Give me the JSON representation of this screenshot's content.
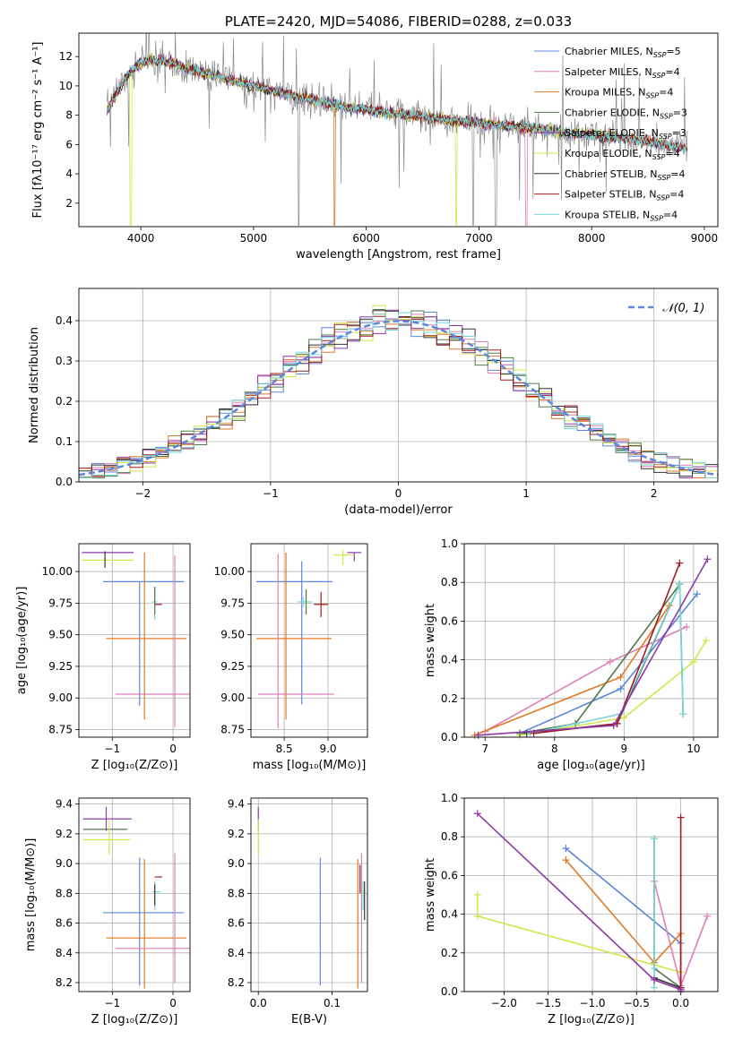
{
  "colors": {
    "chabrier_miles": "#5b86dc",
    "salpeter_miles": "#e07fb9",
    "kroupa_miles": "#e07a25",
    "chabrier_elodie": "#4f7b49",
    "salpeter_elodie": "#8e3aa8",
    "kroupa_elodie": "#cfe84a",
    "chabrier_stelib": "#333333",
    "salpeter_stelib": "#a31a20",
    "kroupa_stelib": "#78d6d8",
    "data": "#8a8a8a",
    "normal": "#5b86dc",
    "grid": "#b0b0b0"
  },
  "chart_data": [
    {
      "id": "spectrum",
      "type": "line",
      "title": "PLATE=2420, MJD=54086, FIBERID=0288, z=0.033",
      "xlabel": "wavelength [Angstrom, rest frame]",
      "ylabel": "Flux [fλ10⁻¹⁷ erg cm⁻² s⁻¹ A⁻¹]",
      "xlim": [
        3450,
        9120
      ],
      "ylim": [
        0.4,
        13.6
      ],
      "xticks": [
        4000,
        5000,
        6000,
        7000,
        8000,
        9000
      ],
      "yticks": [
        2,
        4,
        6,
        8,
        10,
        12
      ],
      "grid": false,
      "legend_position": "upper-right",
      "continuum": {
        "x": [
          3700,
          3750,
          3800,
          3850,
          3900,
          3950,
          4000,
          4100,
          4200,
          4300,
          4400,
          4500,
          4600,
          4700,
          4800,
          4900,
          5000,
          5200,
          5400,
          5600,
          5800,
          6000,
          6200,
          6400,
          6600,
          6800,
          7000,
          7200,
          7400,
          7600,
          7800,
          8000,
          8200,
          8400,
          8600,
          8800
        ],
        "y": [
          8.3,
          9.0,
          9.8,
          10.4,
          10.9,
          11.3,
          11.6,
          11.8,
          11.7,
          11.5,
          11.2,
          11.0,
          10.8,
          10.6,
          10.4,
          10.2,
          10.0,
          9.6,
          9.2,
          8.9,
          8.6,
          8.4,
          8.2,
          8.0,
          7.8,
          7.6,
          7.5,
          7.3,
          7.2,
          7.0,
          6.8,
          6.7,
          6.5,
          6.3,
          6.1,
          5.8
        ]
      },
      "series": [
        {
          "name": "Chabrier MILES, N",
          "sub": "SSP",
          "suffix": "=5",
          "color_key": "chabrier_miles"
        },
        {
          "name": "Salpeter MILES, N",
          "sub": "SSP",
          "suffix": "=4",
          "color_key": "salpeter_miles"
        },
        {
          "name": "Kroupa MILES, N",
          "sub": "SSP",
          "suffix": "=4",
          "color_key": "kroupa_miles"
        },
        {
          "name": "Chabrier ELODIE, N",
          "sub": "SSP",
          "suffix": "=3",
          "color_key": "chabrier_elodie"
        },
        {
          "name": "Salpeter ELODIE, N",
          "sub": "SSP",
          "suffix": "=3",
          "color_key": "salpeter_elodie"
        },
        {
          "name": "Kroupa ELODIE, N",
          "sub": "SSP",
          "suffix": "=4",
          "color_key": "kroupa_elodie"
        },
        {
          "name": "Chabrier STELIB, N",
          "sub": "SSP",
          "suffix": "=4",
          "color_key": "chabrier_stelib"
        },
        {
          "name": "Salpeter STELIB, N",
          "sub": "SSP",
          "suffix": "=4",
          "color_key": "salpeter_stelib"
        },
        {
          "name": "Kroupa STELIB, N",
          "sub": "SSP",
          "suffix": "=4",
          "color_key": "kroupa_stelib"
        }
      ]
    },
    {
      "id": "residuals",
      "type": "histogram",
      "xlabel": "(data-model)/error",
      "ylabel": "Normed distribution",
      "xlim": [
        -2.5,
        2.5
      ],
      "ylim": [
        0.0,
        0.48
      ],
      "xticks": [
        -2,
        -1,
        0,
        1,
        2
      ],
      "yticks": [
        0.0,
        0.1,
        0.2,
        0.3,
        0.4
      ],
      "grid": true,
      "legend_position": "upper-right",
      "legend_label": "𝒩(0, 1)"
    },
    {
      "id": "age_vs_Z",
      "type": "scatter",
      "xlabel": "Z [log₁₀(Z/Z⊙)]",
      "ylabel": "age  [log₁₀(age/yr)]",
      "xlim": [
        -1.55,
        0.28
      ],
      "ylim": [
        8.69,
        10.22
      ],
      "xticks": [
        -1,
        0
      ],
      "yticks": [
        8.75,
        9.0,
        9.25,
        9.5,
        9.75,
        10.0
      ],
      "grid": true,
      "errorbars": [
        {
          "c": "salpeter_elodie",
          "x": -1.05,
          "y": 10.15,
          "x0": -1.5,
          "x1": -0.65,
          "y0": 10.15,
          "y1": 10.15
        },
        {
          "c": "kroupa_elodie",
          "x": -1.0,
          "y": 10.09,
          "x0": -1.5,
          "x1": -0.65,
          "y0": 10.09,
          "y1": 10.09
        },
        {
          "c": "chabrier_stelib",
          "x": -1.12,
          "y": 10.1,
          "x0": -1.12,
          "x1": -1.12,
          "y0": 10.03,
          "y1": 10.16
        },
        {
          "c": "chabrier_miles",
          "x": -0.55,
          "y": 9.92,
          "x0": -1.15,
          "x1": 0.18,
          "y0": 8.94,
          "y1": 9.92
        },
        {
          "c": "kroupa_miles",
          "x": -0.47,
          "y": 9.47,
          "x0": -1.1,
          "x1": 0.22,
          "y0": 8.83,
          "y1": 10.15
        },
        {
          "c": "salpeter_miles",
          "x": 0.03,
          "y": 9.03,
          "x0": -0.95,
          "x1": 0.27,
          "y0": 8.77,
          "y1": 10.13
        },
        {
          "c": "kroupa_stelib",
          "x": -0.3,
          "y": 9.76,
          "x0": -0.34,
          "x1": -0.26,
          "y0": 9.62,
          "y1": 9.88
        },
        {
          "c": "chabrier_elodie",
          "x": -0.3,
          "y": 9.76,
          "x0": -0.3,
          "x1": -0.3,
          "y0": 9.66,
          "y1": 9.88
        },
        {
          "c": "salpeter_stelib",
          "x": -0.25,
          "y": 9.74,
          "x0": -0.3,
          "x1": -0.18,
          "y0": 9.74,
          "y1": 9.74
        }
      ]
    },
    {
      "id": "age_vs_mass",
      "type": "scatter",
      "xlabel": "mass [log₁₀(M/M⊙)]",
      "ylabel": "",
      "xlim": [
        8.12,
        9.45
      ],
      "ylim": [
        8.69,
        10.22
      ],
      "xticks": [
        8.5,
        9.0
      ],
      "yticks": [
        8.75,
        9.0,
        9.25,
        9.5,
        9.75,
        10.0
      ],
      "grid": true,
      "errorbars": [
        {
          "c": "salpeter_elodie",
          "x": 9.3,
          "y": 10.15,
          "x0": 9.22,
          "x1": 9.38,
          "y0": 10.08,
          "y1": 10.15
        },
        {
          "c": "kroupa_elodie",
          "x": 9.17,
          "y": 10.13,
          "x0": 9.06,
          "x1": 9.3,
          "y0": 10.05,
          "y1": 10.17
        },
        {
          "c": "chabrier_miles",
          "x": 8.7,
          "y": 9.92,
          "x0": 8.18,
          "x1": 9.05,
          "y0": 8.95,
          "y1": 10.08
        },
        {
          "c": "kroupa_miles",
          "x": 8.52,
          "y": 9.47,
          "x0": 8.18,
          "x1": 9.04,
          "y0": 8.83,
          "y1": 10.15
        },
        {
          "c": "salpeter_miles",
          "x": 8.43,
          "y": 9.03,
          "x0": 8.2,
          "x1": 9.07,
          "y0": 8.76,
          "y1": 10.14
        },
        {
          "c": "kroupa_stelib",
          "x": 8.72,
          "y": 9.76,
          "x0": 8.65,
          "x1": 8.82,
          "y0": 9.72,
          "y1": 9.8
        },
        {
          "c": "salpeter_stelib",
          "x": 8.92,
          "y": 9.74,
          "x0": 8.84,
          "x1": 9.0,
          "y0": 9.64,
          "y1": 9.84
        },
        {
          "c": "chabrier_elodie",
          "x": 8.75,
          "y": 9.76,
          "x0": 8.75,
          "x1": 8.75,
          "y0": 9.66,
          "y1": 9.86
        }
      ]
    },
    {
      "id": "weight_vs_age",
      "type": "line",
      "xlabel": "age  [log₁₀(age/yr)]",
      "ylabel": "mass weight",
      "xlim": [
        6.7,
        10.35
      ],
      "ylim": [
        0.0,
        1.0
      ],
      "xticks": [
        7,
        8,
        9,
        10
      ],
      "yticks": [
        0.0,
        0.2,
        0.4,
        0.6,
        0.8,
        1.0
      ],
      "grid": true,
      "series": [
        {
          "c": "kroupa_elodie",
          "x": [
            7.5,
            9.0,
            10.0,
            10.18
          ],
          "y": [
            0.01,
            0.1,
            0.39,
            0.5
          ]
        },
        {
          "c": "salpeter_miles",
          "x": [
            7.0,
            8.8,
            9.9
          ],
          "y": [
            0.03,
            0.39,
            0.57
          ]
        },
        {
          "c": "chabrier_miles",
          "x": [
            7.5,
            8.95,
            10.05
          ],
          "y": [
            0.02,
            0.25,
            0.74
          ]
        },
        {
          "c": "kroupa_miles",
          "x": [
            6.85,
            8.95,
            9.65
          ],
          "y": [
            0.01,
            0.31,
            0.68
          ]
        },
        {
          "c": "chabrier_elodie",
          "x": [
            7.5,
            8.3,
            9.8,
            9.85
          ],
          "y": [
            0.02,
            0.07,
            0.79,
            0.12
          ]
        },
        {
          "c": "chabrier_stelib",
          "x": [
            7.6,
            8.9,
            9.8
          ],
          "y": [
            0.02,
            0.07,
            0.79
          ]
        },
        {
          "c": "kroupa_stelib",
          "x": [
            7.65,
            8.95,
            9.8,
            9.85
          ],
          "y": [
            0.02,
            0.12,
            0.79,
            0.12
          ]
        },
        {
          "c": "salpeter_stelib",
          "x": [
            7.7,
            8.9,
            9.8
          ],
          "y": [
            0.02,
            0.07,
            0.9
          ]
        },
        {
          "c": "salpeter_elodie",
          "x": [
            6.9,
            8.85,
            10.2
          ],
          "y": [
            0.01,
            0.06,
            0.92
          ]
        }
      ]
    },
    {
      "id": "mass_vs_Z",
      "type": "scatter",
      "xlabel": "Z [log₁₀(Z/Z⊙)]",
      "ylabel": "mass [log₁₀(M/M⊙)]",
      "xlim": [
        -1.55,
        0.28
      ],
      "ylim": [
        8.14,
        9.44
      ],
      "xticks": [
        -1,
        0
      ],
      "yticks": [
        8.2,
        8.4,
        8.6,
        8.8,
        9.0,
        9.2,
        9.4
      ],
      "grid": true,
      "errorbars": [
        {
          "c": "salpeter_elodie",
          "x": -1.1,
          "y": 9.3,
          "x0": -1.48,
          "x1": -0.68,
          "y0": 9.22,
          "y1": 9.38
        },
        {
          "c": "chabrier_elodie",
          "x": -1.1,
          "y": 9.23,
          "x0": -1.48,
          "x1": -0.75,
          "y0": 9.23,
          "y1": 9.23
        },
        {
          "c": "kroupa_elodie",
          "x": -1.05,
          "y": 9.16,
          "x0": -1.48,
          "x1": -0.7,
          "y0": 9.06,
          "y1": 9.3
        },
        {
          "c": "chabrier_miles",
          "x": -0.55,
          "y": 8.67,
          "x0": -1.15,
          "x1": 0.18,
          "y0": 8.18,
          "y1": 9.04
        },
        {
          "c": "kroupa_miles",
          "x": -0.47,
          "y": 8.5,
          "x0": -1.1,
          "x1": 0.22,
          "y0": 8.16,
          "y1": 9.03
        },
        {
          "c": "salpeter_miles",
          "x": 0.03,
          "y": 8.43,
          "x0": -0.95,
          "x1": 0.27,
          "y0": 8.2,
          "y1": 9.07
        },
        {
          "c": "kroupa_stelib",
          "x": -0.3,
          "y": 8.81,
          "x0": -0.34,
          "x1": -0.2,
          "y0": 8.69,
          "y1": 8.88
        },
        {
          "c": "salpeter_stelib",
          "x": -0.25,
          "y": 8.91,
          "x0": -0.3,
          "x1": -0.18,
          "y0": 8.91,
          "y1": 8.91
        },
        {
          "c": "chabrier_stelib",
          "x": -0.3,
          "y": 8.8,
          "x0": -0.3,
          "x1": -0.3,
          "y0": 8.72,
          "y1": 8.86
        }
      ]
    },
    {
      "id": "mass_vs_ebv",
      "type": "scatter",
      "xlabel": "E(B-V)",
      "ylabel": "",
      "xlim": [
        -0.01,
        0.148
      ],
      "ylim": [
        8.14,
        9.44
      ],
      "xticks": [
        0.0,
        0.1
      ],
      "yticks": [
        8.2,
        8.4,
        8.6,
        8.8,
        9.0,
        9.2,
        9.4
      ],
      "grid": true,
      "errorbars": [
        {
          "c": "salpeter_elodie",
          "x": 0.0,
          "y": 9.3,
          "x0": 0.0,
          "x1": 0.0,
          "y0": 9.22,
          "y1": 9.38
        },
        {
          "c": "kroupa_elodie",
          "x": 0.0,
          "y": 9.16,
          "x0": 0.0,
          "x1": 0.0,
          "y0": 9.06,
          "y1": 9.3
        },
        {
          "c": "chabrier_miles",
          "x": 0.084,
          "y": 8.67,
          "x0": 0.084,
          "x1": 0.084,
          "y0": 8.18,
          "y1": 9.04
        },
        {
          "c": "kroupa_miles",
          "x": 0.135,
          "y": 8.5,
          "x0": 0.135,
          "x1": 0.135,
          "y0": 8.16,
          "y1": 9.03
        },
        {
          "c": "salpeter_miles",
          "x": 0.14,
          "y": 8.43,
          "x0": 0.14,
          "x1": 0.14,
          "y0": 8.2,
          "y1": 9.07
        },
        {
          "c": "salpeter_stelib",
          "x": 0.138,
          "y": 8.91,
          "x0": 0.138,
          "x1": 0.138,
          "y0": 8.8,
          "y1": 8.99
        },
        {
          "c": "kroupa_stelib",
          "x": 0.142,
          "y": 8.81,
          "x0": 0.142,
          "x1": 0.142,
          "y0": 8.69,
          "y1": 8.88
        },
        {
          "c": "chabrier_stelib",
          "x": 0.144,
          "y": 8.8,
          "x0": 0.144,
          "x1": 0.144,
          "y0": 8.62,
          "y1": 8.88
        }
      ]
    },
    {
      "id": "weight_vs_Z",
      "type": "line",
      "xlabel": "Z [log₁₀(Z/Z⊙)]",
      "ylabel": "mass weight",
      "xlim": [
        -2.45,
        0.42
      ],
      "ylim": [
        0.0,
        1.0
      ],
      "xticks": [
        -2.0,
        -1.5,
        -1.0,
        -0.5,
        0.0
      ],
      "yticks": [
        0.0,
        0.2,
        0.4,
        0.6,
        0.8,
        1.0
      ],
      "grid": true,
      "series": [
        {
          "c": "kroupa_elodie",
          "x": [
            -2.3,
            -2.3,
            0.0,
            0.0
          ],
          "y": [
            0.5,
            0.39,
            0.1,
            0.01
          ]
        },
        {
          "c": "chabrier_miles",
          "x": [
            -1.3,
            0.0,
            0.0
          ],
          "y": [
            0.74,
            0.25,
            0.02
          ]
        },
        {
          "c": "kroupa_miles",
          "x": [
            -1.3,
            -0.3,
            0.0,
            0.0
          ],
          "y": [
            0.68,
            0.15,
            0.3,
            0.01
          ]
        },
        {
          "c": "salpeter_miles",
          "x": [
            -0.3,
            0.0,
            0.3
          ],
          "y": [
            0.57,
            0.03,
            0.39
          ]
        },
        {
          "c": "chabrier_elodie",
          "x": [
            -0.3,
            -0.3,
            0.0
          ],
          "y": [
            0.79,
            0.12,
            0.02
          ]
        },
        {
          "c": "chabrier_stelib",
          "x": [
            -0.3,
            0.0,
            0.0
          ],
          "y": [
            0.07,
            0.02,
            0.0
          ]
        },
        {
          "c": "kroupa_stelib",
          "x": [
            -0.3,
            -0.3,
            -0.3
          ],
          "y": [
            0.79,
            0.12,
            0.02
          ]
        },
        {
          "c": "salpeter_stelib",
          "x": [
            0.0,
            0.0
          ],
          "y": [
            0.9,
            0.02
          ]
        },
        {
          "c": "salpeter_elodie",
          "x": [
            -2.3,
            -0.3,
            0.0
          ],
          "y": [
            0.92,
            0.06,
            0.01
          ]
        }
      ]
    }
  ]
}
